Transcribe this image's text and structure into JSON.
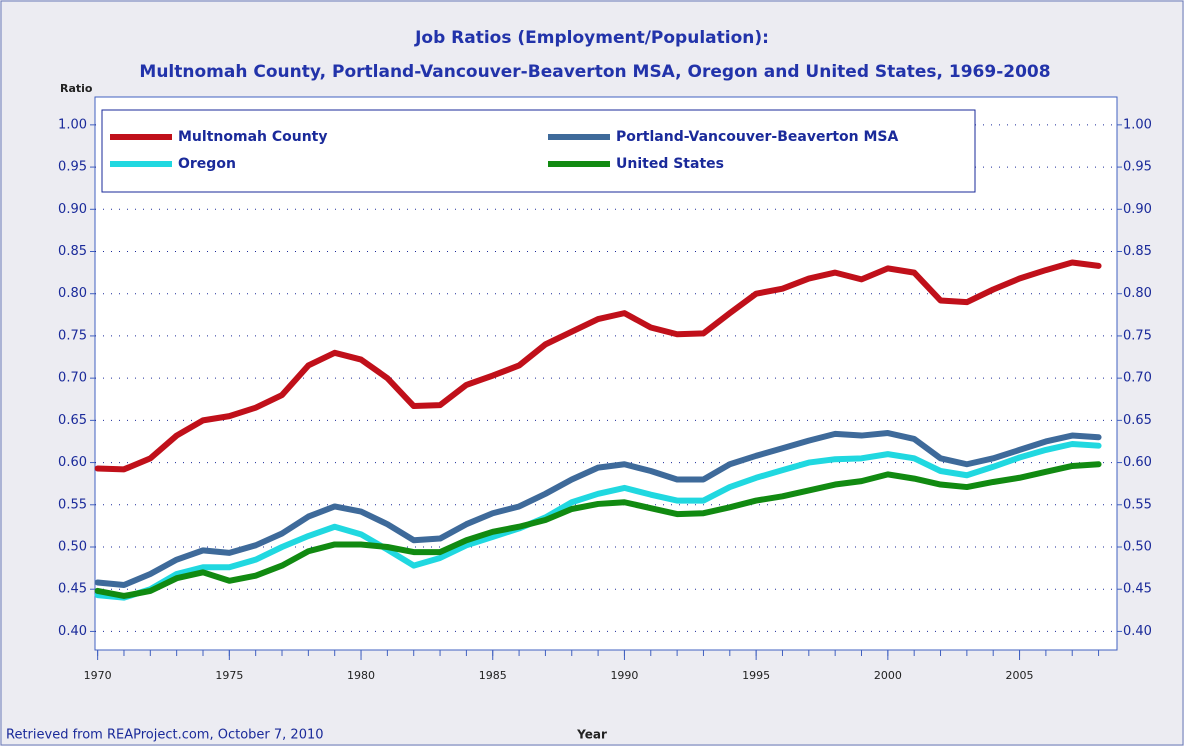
{
  "chart_data": {
    "type": "line",
    "title": "Job Ratios (Employment/Population):",
    "subtitle": "Multnomah County, Portland-Vancouver-Beaverton MSA, Oregon and United States, 1969-2008",
    "y_label": "Ratio",
    "x_label": "Year",
    "source": "Retrieved from REAProject.com, October 7, 2010",
    "x": [
      1970,
      1971,
      1972,
      1973,
      1974,
      1975,
      1976,
      1977,
      1978,
      1979,
      1980,
      1981,
      1982,
      1983,
      1984,
      1985,
      1986,
      1987,
      1988,
      1989,
      1990,
      1991,
      1992,
      1993,
      1994,
      1995,
      1996,
      1997,
      1998,
      1999,
      2000,
      2001,
      2002,
      2003,
      2004,
      2005,
      2006,
      2007,
      2008
    ],
    "series": [
      {
        "name": "Multnomah County",
        "color": "#c0101a",
        "values": [
          0.593,
          0.592,
          0.605,
          0.632,
          0.65,
          0.655,
          0.665,
          0.68,
          0.715,
          0.73,
          0.722,
          0.7,
          0.667,
          0.668,
          0.692,
          0.703,
          0.715,
          0.74,
          0.755,
          0.77,
          0.777,
          0.76,
          0.752,
          0.753,
          0.777,
          0.8,
          0.806,
          0.818,
          0.825,
          0.817,
          0.83,
          0.825,
          0.792,
          0.79,
          0.805,
          0.818,
          0.828,
          0.837,
          0.833
        ]
      },
      {
        "name": "Portland-Vancouver-Beaverton MSA",
        "color": "#3e6a9a",
        "values": [
          0.458,
          0.455,
          0.468,
          0.485,
          0.496,
          0.493,
          0.502,
          0.516,
          0.536,
          0.548,
          0.542,
          0.527,
          0.508,
          0.51,
          0.527,
          0.54,
          0.548,
          0.563,
          0.58,
          0.594,
          0.598,
          0.59,
          0.58,
          0.58,
          0.598,
          0.608,
          0.617,
          0.626,
          0.634,
          0.632,
          0.635,
          0.628,
          0.605,
          0.598,
          0.605,
          0.615,
          0.625,
          0.632,
          0.63
        ]
      },
      {
        "name": "Oregon",
        "color": "#20d8e0",
        "values": [
          0.443,
          0.44,
          0.45,
          0.468,
          0.476,
          0.476,
          0.485,
          0.5,
          0.513,
          0.524,
          0.515,
          0.497,
          0.478,
          0.487,
          0.502,
          0.512,
          0.522,
          0.535,
          0.553,
          0.563,
          0.57,
          0.562,
          0.555,
          0.555,
          0.571,
          0.582,
          0.591,
          0.6,
          0.604,
          0.605,
          0.61,
          0.605,
          0.59,
          0.585,
          0.595,
          0.606,
          0.615,
          0.622,
          0.62
        ]
      },
      {
        "name": "United States",
        "color": "#118a11",
        "values": [
          0.448,
          0.442,
          0.448,
          0.463,
          0.47,
          0.46,
          0.466,
          0.478,
          0.495,
          0.503,
          0.503,
          0.5,
          0.494,
          0.494,
          0.508,
          0.518,
          0.524,
          0.532,
          0.545,
          0.551,
          0.553,
          0.546,
          0.539,
          0.54,
          0.547,
          0.555,
          0.56,
          0.567,
          0.574,
          0.578,
          0.586,
          0.581,
          0.574,
          0.571,
          0.577,
          0.582,
          0.589,
          0.596,
          0.598
        ]
      }
    ],
    "xlim": [
      1969.9,
      2008.7
    ],
    "xticks": [
      1970,
      1975,
      1980,
      1985,
      1990,
      1995,
      2000,
      2005
    ],
    "xminorticks": [
      1970,
      1971,
      1972,
      1973,
      1974,
      1975,
      1976,
      1977,
      1978,
      1979,
      1980,
      1981,
      1982,
      1983,
      1984,
      1985,
      1986,
      1987,
      1988,
      1989,
      1990,
      1991,
      1992,
      1993,
      1994,
      1995,
      1996,
      1997,
      1998,
      1999,
      2000,
      2001,
      2002,
      2003,
      2004,
      2005,
      2006,
      2007,
      2008
    ],
    "ylim": [
      0.378,
      1.033
    ],
    "yticks": [
      {
        "value": 0.4,
        "label": "0.40"
      },
      {
        "value": 0.45,
        "label": "0.45"
      },
      {
        "value": 0.5,
        "label": "0.50"
      },
      {
        "value": 0.55,
        "label": "0.55"
      },
      {
        "value": 0.6,
        "label": "0.60"
      },
      {
        "value": 0.65,
        "label": "0.65"
      },
      {
        "value": 0.7,
        "label": "0.70"
      },
      {
        "value": 0.75,
        "label": "0.75"
      },
      {
        "value": 0.8,
        "label": "0.80"
      },
      {
        "value": 0.85,
        "label": "0.85"
      },
      {
        "value": 0.9,
        "label": "0.90"
      },
      {
        "value": 0.95,
        "label": "0.95"
      },
      {
        "value": 1.0,
        "label": "1.00"
      }
    ],
    "grid": true,
    "right_axis": true,
    "legend": "top"
  }
}
